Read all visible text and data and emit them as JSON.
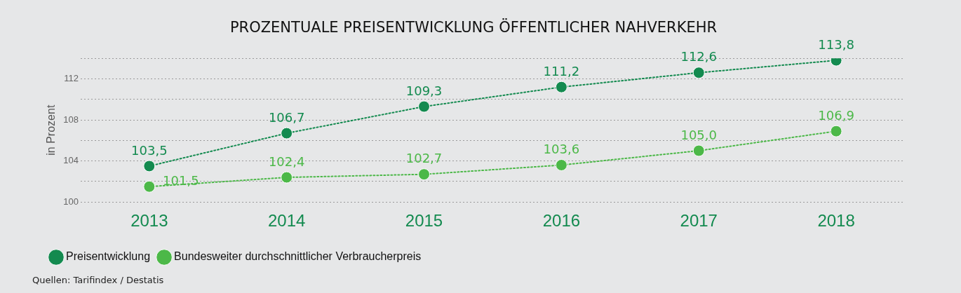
{
  "chart_data": {
    "type": "line",
    "title": "PROZENTUALE PREISENTWICKLUNG ÖFFENTLICHER NAHVERKEHR",
    "ylabel": "in Prozent",
    "categories": [
      "2013",
      "2014",
      "2015",
      "2016",
      "2017",
      "2018"
    ],
    "series": [
      {
        "name": "Preisentwicklung",
        "color": "#138a4f",
        "values": [
          103.5,
          106.7,
          109.3,
          111.2,
          112.6,
          113.8
        ],
        "value_labels": [
          "103,5",
          "106,7",
          "109,3",
          "111,2",
          "112,6",
          "113,8"
        ]
      },
      {
        "name": "Bundesweiter durchschnittlicher Verbraucherpreis",
        "color": "#4cb848",
        "values": [
          101.5,
          102.4,
          102.7,
          103.6,
          105.0,
          106.9
        ],
        "value_labels": [
          "101,5",
          "102,4",
          "102,7",
          "103,6",
          "105,0",
          "106,9"
        ]
      }
    ],
    "ylim": [
      100,
      114
    ],
    "yticks": [
      100,
      {
        "value": 102,
        "label": null
      },
      104,
      {
        "value": 106,
        "label": null
      },
      108,
      {
        "value": 110,
        "label": null
      },
      112,
      {
        "value": 114,
        "label": null
      }
    ],
    "grid": "y",
    "legend": "bottom left",
    "marker": "circle",
    "line_style": "dotted",
    "annotations": [
      "Quellen: Tarifindex / Destatis"
    ]
  }
}
